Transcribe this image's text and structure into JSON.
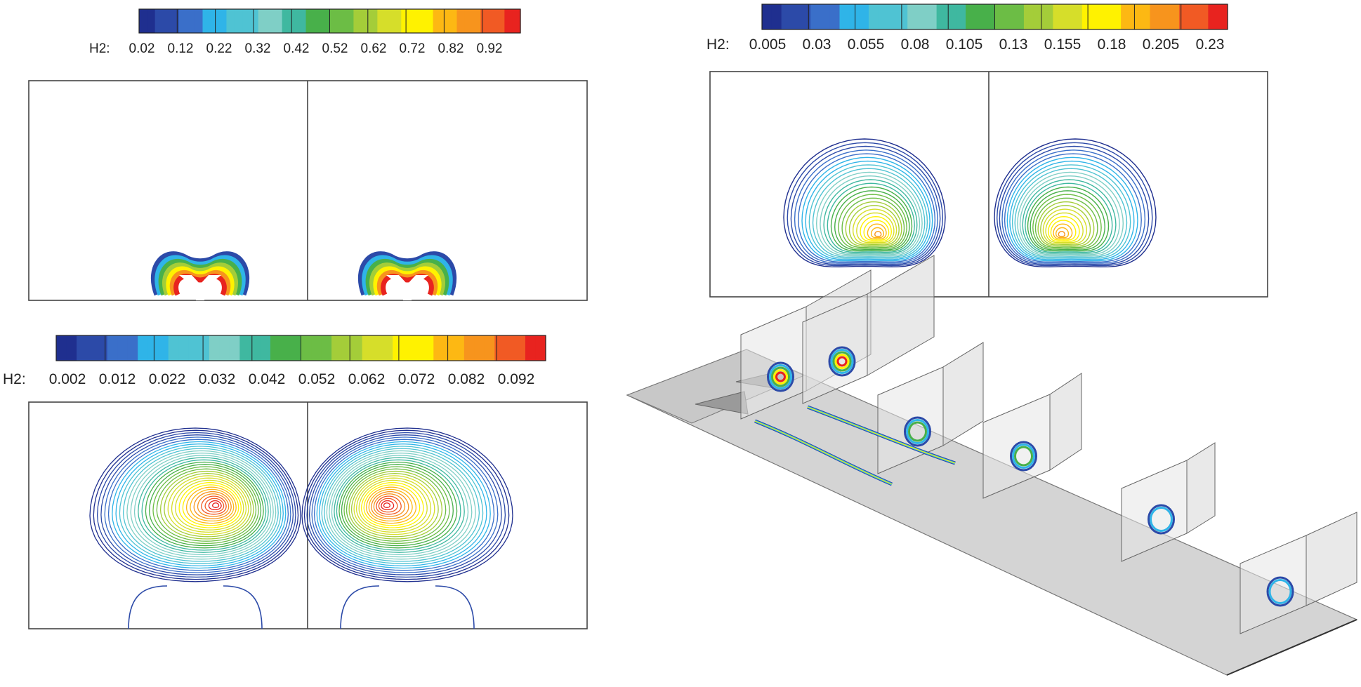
{
  "figure": {
    "variable_label": "H2:",
    "colorbars": [
      {
        "name": "top-left",
        "ticks": [
          "0.02",
          "0.12",
          "0.22",
          "0.32",
          "0.42",
          "0.52",
          "0.62",
          "0.72",
          "0.82",
          "0.92"
        ],
        "range": [
          0.02,
          0.92
        ]
      },
      {
        "name": "top-right",
        "ticks": [
          "0.005",
          "0.03",
          "0.055",
          "0.08",
          "0.105",
          "0.13",
          "0.155",
          "0.18",
          "0.205",
          "0.23"
        ],
        "range": [
          0.005,
          0.23
        ]
      },
      {
        "name": "bottom-left",
        "ticks": [
          "0.002",
          "0.012",
          "0.022",
          "0.032",
          "0.042",
          "0.052",
          "0.062",
          "0.072",
          "0.082",
          "0.092"
        ],
        "range": [
          0.002,
          0.092
        ]
      }
    ],
    "palette": [
      "#1f2f8f",
      "#2c4aa8",
      "#3a6fc9",
      "#2fb4e8",
      "#4fc3d3",
      "#7fcfc6",
      "#3fb8a0",
      "#48b04a",
      "#6cbd45",
      "#a4cd39",
      "#d6de2a",
      "#fff200",
      "#fdb813",
      "#f7941d",
      "#f15a24",
      "#e8231f"
    ],
    "panels": [
      {
        "name": "upper-left-cross-section",
        "pair": 2
      },
      {
        "name": "upper-right-cross-section",
        "pair": 2
      },
      {
        "name": "lower-left-cross-section",
        "pair": 2
      },
      {
        "name": "three-d-duct-view",
        "slices": 6
      }
    ]
  }
}
